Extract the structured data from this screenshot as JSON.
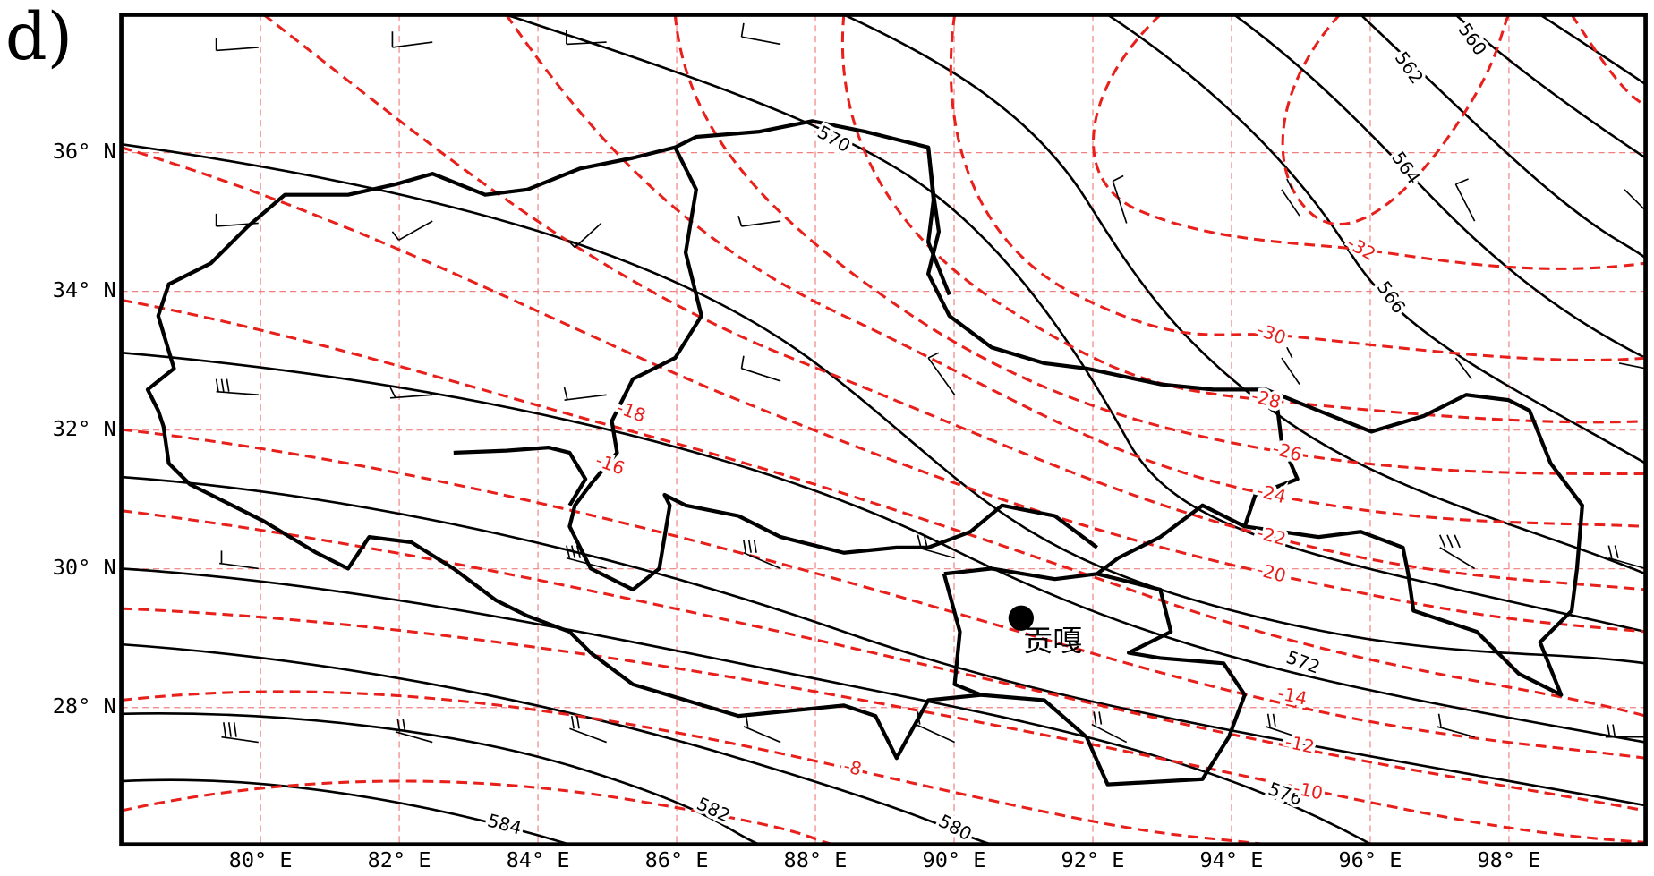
{
  "map": {
    "panel_label": "d)",
    "lon_ticks": [
      {
        "value": 80,
        "label": "80° E"
      },
      {
        "value": 82,
        "label": "82° E"
      },
      {
        "value": 84,
        "label": "84° E"
      },
      {
        "value": 86,
        "label": "86° E"
      },
      {
        "value": 88,
        "label": "88° E"
      },
      {
        "value": 90,
        "label": "90° E"
      },
      {
        "value": 92,
        "label": "92° E"
      },
      {
        "value": 94,
        "label": "94° E"
      },
      {
        "value": 96,
        "label": "96° E"
      },
      {
        "value": 98,
        "label": "98° E"
      }
    ],
    "lat_ticks": [
      {
        "value": 36,
        "label": "36° N"
      },
      {
        "value": 34,
        "label": "34° N"
      },
      {
        "value": 32,
        "label": "32° N"
      },
      {
        "value": 30,
        "label": "30° N"
      },
      {
        "value": 28,
        "label": "28° N"
      }
    ],
    "geopotential_labels": [
      560,
      562,
      564,
      566,
      570,
      572,
      576,
      580,
      582,
      584
    ],
    "temperature_labels": [
      -32,
      -30,
      -28,
      -26,
      -24,
      -22,
      -20,
      -18,
      -16,
      -14,
      -12,
      -10,
      -8
    ],
    "station": "贡嘎"
  }
}
